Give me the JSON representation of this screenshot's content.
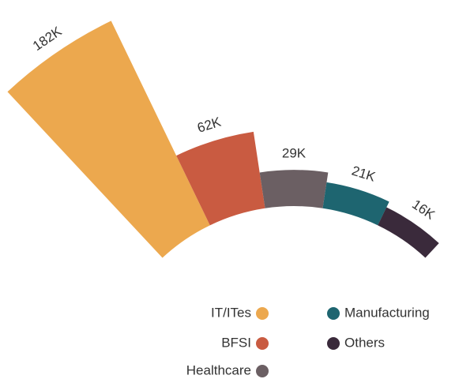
{
  "chart_data": {
    "type": "radial_bar",
    "categories": [
      "IT/ITes",
      "BFSI",
      "Healthcare",
      "Manufacturing",
      "Others"
    ],
    "values": [
      182,
      62,
      29,
      21,
      16
    ],
    "value_labels": [
      "182K",
      "62K",
      "29K",
      "21K",
      "16K"
    ],
    "colors": [
      "#eca84e",
      "#c95b41",
      "#6b5f63",
      "#1e6570",
      "#3a2a3b"
    ]
  }
}
